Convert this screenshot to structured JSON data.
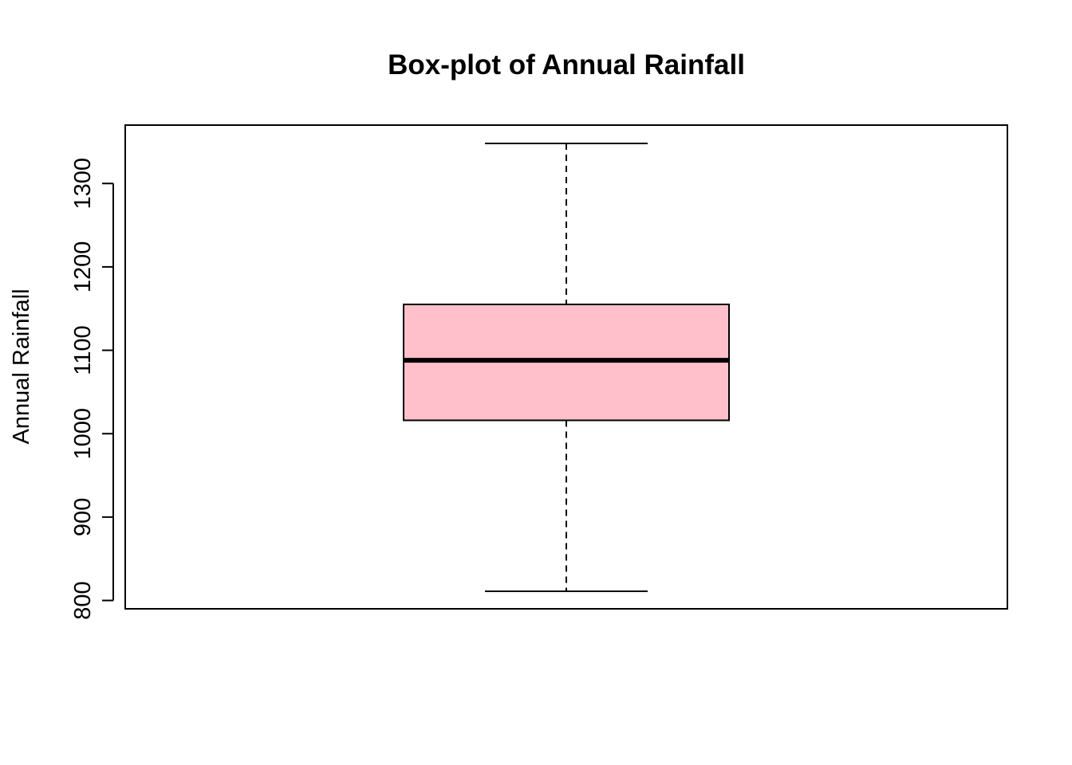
{
  "chart_data": {
    "type": "boxplot",
    "title": "Box-plot of Annual Rainfall",
    "xlabel": "",
    "ylabel": "Annual Rainfall",
    "ylim": [
      790,
      1370
    ],
    "yticks": [
      800,
      900,
      1000,
      1100,
      1200,
      1300
    ],
    "ytick_labels": [
      "800",
      "900",
      "1000",
      "1100",
      "1200",
      "1300"
    ],
    "box": {
      "min": 811,
      "q1": 1016,
      "median": 1088,
      "q3": 1155,
      "max": 1348
    },
    "colors": {
      "box_fill": "#ffc0cb",
      "line": "#000000"
    },
    "grid": false,
    "legend": "none"
  }
}
